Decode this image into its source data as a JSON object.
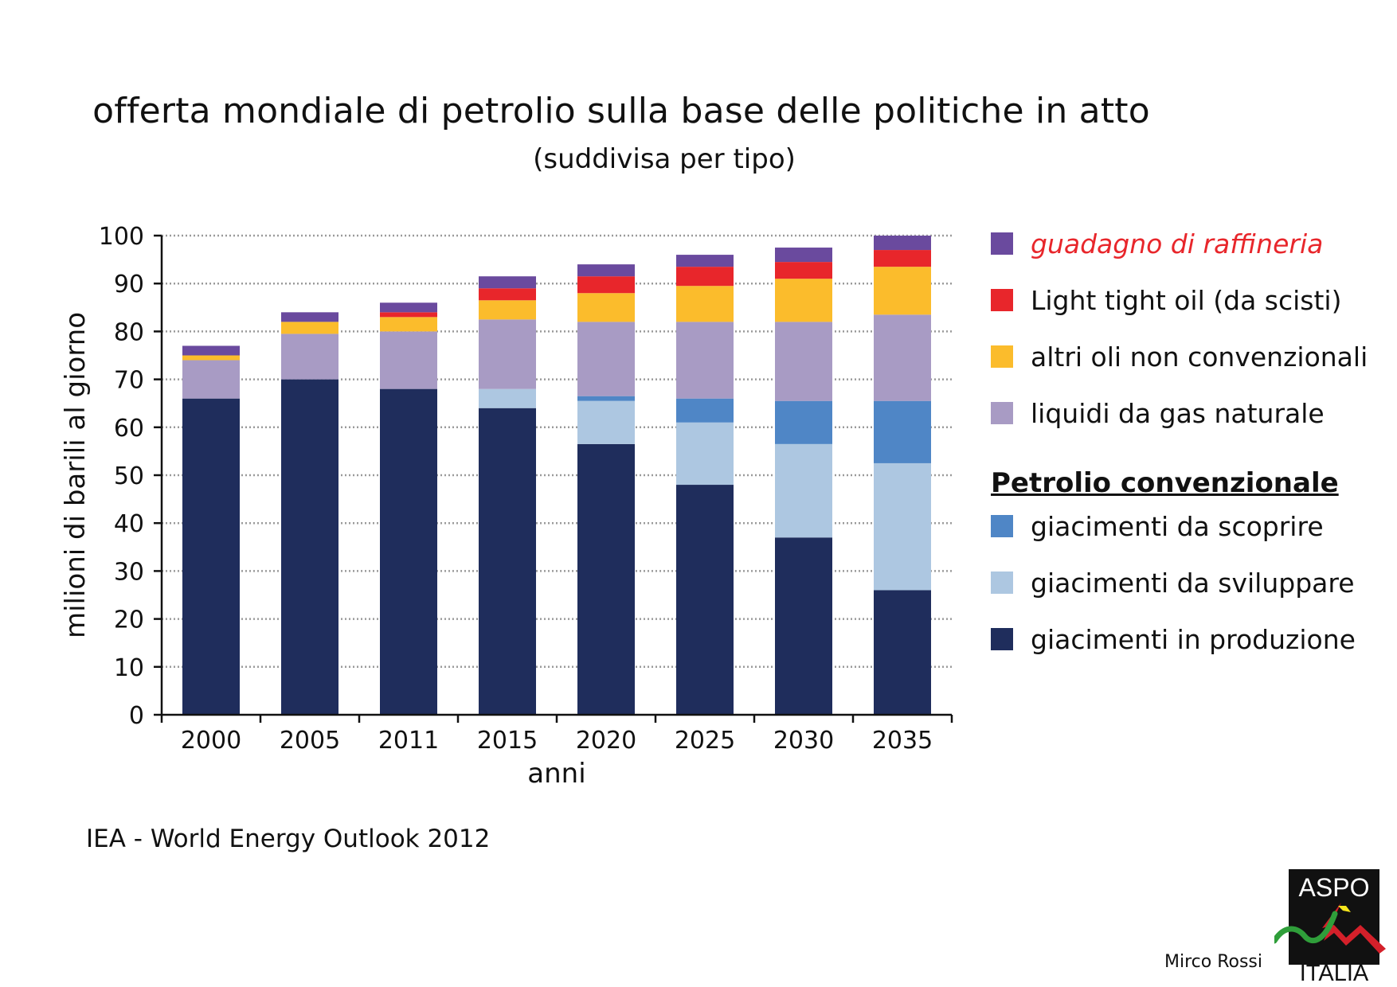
{
  "title": "offerta mondiale di petrolio sulla base delle politiche in atto",
  "subtitle": "(suddivisa per tipo)",
  "source": "IEA - World Energy Outlook 2012",
  "author": "Mirco Rossi",
  "logo": {
    "top_text": "ASPO",
    "bottom_text": "ITALIA"
  },
  "legend": {
    "items_top": [
      {
        "label": "guadagno di raffineria",
        "color": "#6a4a9e"
      },
      {
        "label": "Light tight oil (da scisti)",
        "color": "#e8262b"
      },
      {
        "label": "altri oli non convenzionali",
        "color": "#fbbc2c"
      },
      {
        "label": "liquidi da gas naturale",
        "color": "#a89bc4"
      }
    ],
    "header": "Petrolio convenzionale",
    "items_bottom": [
      {
        "label": "giacimenti da scoprire",
        "color": "#4f86c6"
      },
      {
        "label": "giacimenti da sviluppare",
        "color": "#adc7e1"
      },
      {
        "label": "giacimenti in produzione",
        "color": "#1f2d5c"
      }
    ]
  },
  "chart_data": {
    "type": "bar",
    "stacked": true,
    "xlabel": "anni",
    "ylabel": "milioni di barili al giorno",
    "ylim": [
      0,
      100
    ],
    "yticks": [
      0,
      10,
      20,
      30,
      40,
      50,
      60,
      70,
      80,
      90,
      100
    ],
    "grid": "horizontal dotted",
    "legend_position": "right",
    "categories": [
      "2000",
      "2005",
      "2011",
      "2015",
      "2020",
      "2025",
      "2030",
      "2035"
    ],
    "series": [
      {
        "name": "giacimenti in produzione",
        "color": "#1f2d5c",
        "values": [
          66,
          70,
          68,
          64,
          56.5,
          48,
          37,
          26
        ]
      },
      {
        "name": "giacimenti da sviluppare",
        "color": "#adc7e1",
        "values": [
          0,
          0,
          0,
          4,
          9,
          13,
          19.5,
          26.5
        ]
      },
      {
        "name": "giacimenti da scoprire",
        "color": "#4f86c6",
        "values": [
          0,
          0,
          0,
          0,
          1,
          5,
          9,
          13
        ]
      },
      {
        "name": "liquidi da gas naturale",
        "color": "#a89bc4",
        "values": [
          8,
          9.5,
          12,
          14.5,
          15.5,
          16,
          16.5,
          18
        ]
      },
      {
        "name": "altri oli non convenzionali",
        "color": "#fbbc2c",
        "values": [
          1,
          2.5,
          3,
          4,
          6,
          7.5,
          9,
          10
        ]
      },
      {
        "name": "Light tight oil (da scisti)",
        "color": "#e8262b",
        "values": [
          0,
          0,
          1,
          2.5,
          3.5,
          4,
          3.5,
          3.5
        ]
      },
      {
        "name": "guadagno di raffineria",
        "color": "#6a4a9e",
        "values": [
          2,
          2,
          2,
          2.5,
          2.5,
          2.5,
          3,
          3
        ]
      }
    ]
  }
}
